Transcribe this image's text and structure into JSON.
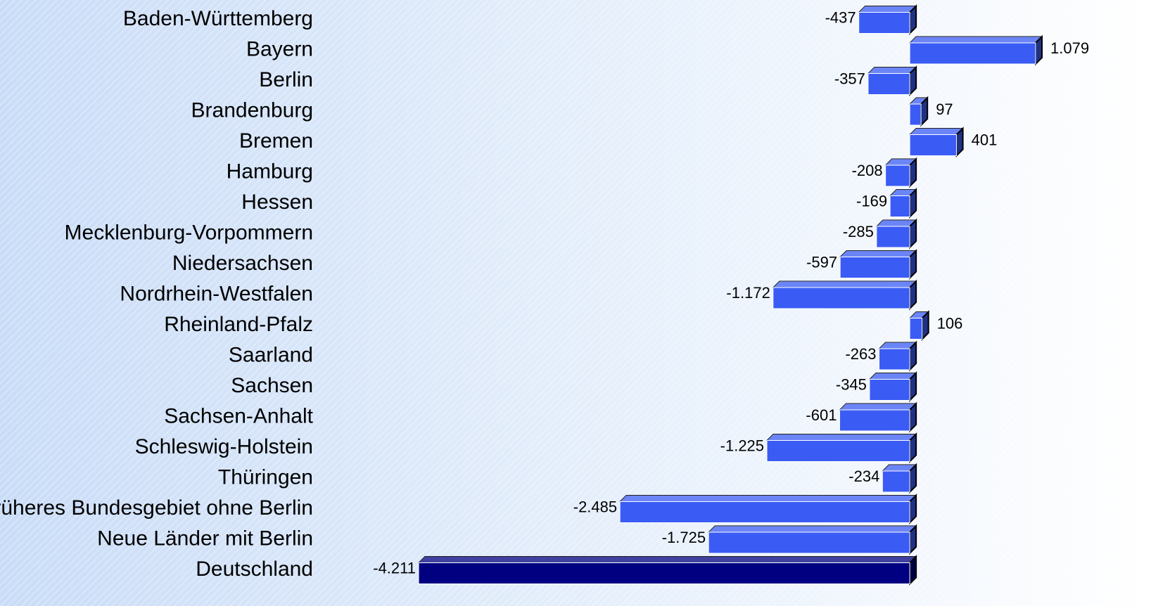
{
  "chart_data": {
    "type": "bar",
    "orientation": "horizontal",
    "categories": [
      "Baden-Württemberg",
      "Bayern",
      "Berlin",
      "Brandenburg",
      "Bremen",
      "Hamburg",
      "Hessen",
      "Mecklenburg-Vorpommern",
      "Niedersachsen",
      "Nordrhein-Westfalen",
      "Rheinland-Pfalz",
      "Saarland",
      "Sachsen",
      "Sachsen-Anhalt",
      "Schleswig-Holstein",
      "Thüringen",
      "Früheres Bundesgebiet ohne Berlin",
      "Neue Länder mit Berlin",
      "Deutschland"
    ],
    "values": [
      -437,
      1079,
      -357,
      97,
      401,
      -208,
      -169,
      -285,
      -597,
      -1172,
      106,
      -263,
      -345,
      -601,
      -1225,
      -234,
      -2485,
      -1725,
      -4211
    ],
    "value_labels": [
      "-437",
      "1.079",
      "-357",
      "97",
      "401",
      "-208",
      "-169",
      "-285",
      "-597",
      "-1.172",
      "106",
      "-263",
      "-345",
      "-601",
      "-1.225",
      "-234",
      "-2.485",
      "-1.725",
      "-4.211"
    ],
    "colors": [
      "#3a5cf5",
      "#3a5cf5",
      "#3a5cf5",
      "#3a5cf5",
      "#3a5cf5",
      "#3a5cf5",
      "#3a5cf5",
      "#3a5cf5",
      "#3a5cf5",
      "#3a5cf5",
      "#3a5cf5",
      "#3a5cf5",
      "#3a5cf5",
      "#3a5cf5",
      "#3a5cf5",
      "#3a5cf5",
      "#3a5cf5",
      "#3a5cf5",
      "#000080"
    ],
    "grid": false
  }
}
